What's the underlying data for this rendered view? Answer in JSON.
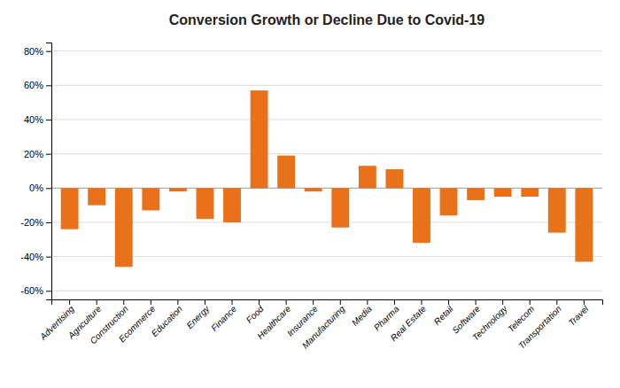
{
  "chart_data": {
    "type": "bar",
    "title": "Conversion Growth or Decline Due to Covid-19",
    "categories": [
      "Advertising",
      "Agriculture",
      "Construction",
      "Ecommerce",
      "Education",
      "Energy",
      "Finance",
      "Food",
      "Healthcare",
      "Insurance",
      "Manufacturing",
      "Media",
      "Pharma",
      "Real Estate",
      "Retail",
      "Software",
      "Technology",
      "Telecom",
      "Transportation",
      "Travel"
    ],
    "values": [
      -24,
      -10,
      -46,
      -13,
      -2,
      -18,
      -20,
      57,
      19,
      -2,
      -23,
      13,
      11,
      -32,
      -16,
      -7,
      -5,
      -5,
      -26,
      -43
    ],
    "color": "#E8711A",
    "ylim": [
      -65,
      85
    ],
    "yticks": [
      {
        "value": -60,
        "label": "-60%"
      },
      {
        "value": -40,
        "label": "-40%"
      },
      {
        "value": -20,
        "label": "-20%"
      },
      {
        "value": 0,
        "label": "0%"
      },
      {
        "value": 20,
        "label": "20%"
      },
      {
        "value": 40,
        "label": "40%"
      },
      {
        "value": 60,
        "label": "60%"
      },
      {
        "value": 80,
        "label": "80%"
      }
    ],
    "grid": true
  }
}
